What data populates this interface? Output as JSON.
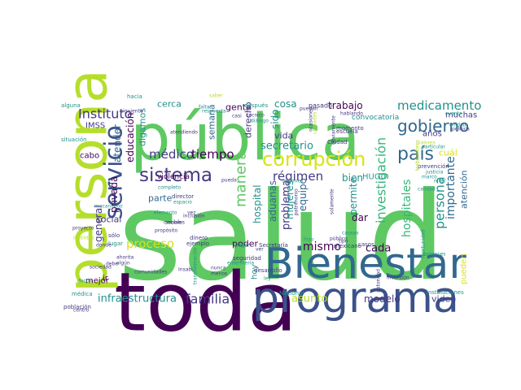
{
  "palette": {
    "green": "#5ec962",
    "lime": "#b5de2b",
    "yellow": "#d8e219",
    "teal": "#21918c",
    "cyan": "#2a9d8f",
    "blue": "#3b528b",
    "navy": "#31688e",
    "indigo": "#443983",
    "purple": "#440154",
    "mint": "#35b779"
  },
  "words": [
    {
      "text": "salud",
      "color": "green"
    },
    {
      "text": "toda",
      "color": "purple"
    },
    {
      "text": "pública",
      "color": "green"
    },
    {
      "text": "Bienestar",
      "color": "navy"
    },
    {
      "text": "persona",
      "color": "lime"
    },
    {
      "text": "programa",
      "color": "blue"
    },
    {
      "text": "servicio",
      "color": "blue"
    },
    {
      "text": "corrupción",
      "color": "yellow"
    },
    {
      "text": "sistema",
      "color": "indigo"
    },
    {
      "text": "país",
      "color": "navy"
    },
    {
      "text": "gobierno",
      "color": "navy"
    },
    {
      "text": "medicamento",
      "color": "teal"
    },
    {
      "text": "Instituto",
      "color": "indigo"
    },
    {
      "text": "médico",
      "color": "indigo"
    },
    {
      "text": "tiempo",
      "color": "purple"
    },
    {
      "text": "investigación",
      "color": "mint"
    },
    {
      "text": "hospitales",
      "color": "mint"
    },
    {
      "text": "persona",
      "color": "teal"
    },
    {
      "text": "importante",
      "color": "navy"
    },
    {
      "text": "atención",
      "color": "navy"
    },
    {
      "text": "manera",
      "color": "green"
    },
    {
      "text": "régimen",
      "color": "indigo"
    },
    {
      "text": "secretario",
      "color": "teal"
    },
    {
      "text": "proceso",
      "color": "yellow"
    },
    {
      "text": "familia",
      "color": "indigo"
    },
    {
      "text": "infraestructura",
      "color": "teal"
    },
    {
      "text": "asunto",
      "color": "lime"
    },
    {
      "text": "modelo",
      "color": "indigo"
    },
    {
      "text": "video",
      "color": "indigo"
    },
    {
      "text": "mismo",
      "color": "purple"
    },
    {
      "text": "cada",
      "color": "purple"
    },
    {
      "text": "problema",
      "color": "indigo"
    },
    {
      "text": "equipo",
      "color": "navy"
    },
    {
      "text": "permite",
      "color": "teal"
    },
    {
      "text": "dar",
      "color": "purple"
    },
    {
      "text": "bien",
      "color": "teal"
    },
    {
      "text": "HUGO",
      "color": "cyan"
    },
    {
      "text": "hospital",
      "color": "teal"
    },
    {
      "text": "aduanas",
      "color": "navy"
    },
    {
      "text": "mujeres",
      "color": "teal"
    },
    {
      "text": "vida",
      "color": "indigo"
    },
    {
      "text": "sido",
      "color": "teal"
    },
    {
      "text": "cosa",
      "color": "teal"
    },
    {
      "text": "trabajo",
      "color": "purple"
    },
    {
      "text": "gente",
      "color": "purple"
    },
    {
      "text": "derecho",
      "color": "indigo"
    },
    {
      "text": "semana",
      "color": "navy"
    },
    {
      "text": "parte",
      "color": "navy"
    },
    {
      "text": "social",
      "color": "indigo"
    },
    {
      "text": "general",
      "color": "indigo"
    },
    {
      "text": "privada",
      "color": "purple"
    },
    {
      "text": "atender",
      "color": "navy"
    },
    {
      "text": "educación",
      "color": "purple"
    },
    {
      "text": "digamos",
      "color": "teal"
    },
    {
      "text": "cerca",
      "color": "teal"
    },
    {
      "text": "IMSS",
      "color": "indigo"
    },
    {
      "text": "cabo",
      "color": "purple"
    },
    {
      "text": "mejor",
      "color": "purple"
    },
    {
      "text": "ir",
      "color": "purple"
    },
    {
      "text": "poder",
      "color": "purple"
    },
    {
      "text": "hoy",
      "color": "teal"
    },
    {
      "text": "muchas",
      "color": "indigo"
    },
    {
      "text": "años",
      "color": "indigo"
    },
    {
      "text": "cuál",
      "color": "yellow"
    },
    {
      "text": "pueden",
      "color": "yellow"
    },
    {
      "text": "violencia",
      "color": "purple"
    },
    {
      "text": "convocatoria",
      "color": "teal"
    },
    {
      "text": "momento",
      "color": "indigo"
    },
    {
      "text": "escuela",
      "color": "indigo"
    },
    {
      "text": "prevención",
      "color": "indigo"
    },
    {
      "text": "instalaciones",
      "color": "teal"
    },
    {
      "text": "seguridad",
      "color": "indigo"
    },
    {
      "text": "desarrollo",
      "color": "indigo"
    },
    {
      "text": "Secretaría",
      "color": "indigo"
    },
    {
      "text": "Nacional",
      "color": "teal"
    },
    {
      "text": "mexicano",
      "color": "indigo"
    },
    {
      "text": "casos",
      "color": "indigo"
    },
    {
      "text": "población",
      "color": "indigo"
    },
    {
      "text": "médica",
      "color": "teal"
    },
    {
      "text": "director",
      "color": "indigo"
    },
    {
      "text": "ejemplo",
      "color": "indigo"
    },
    {
      "text": "dinero",
      "color": "indigo"
    },
    {
      "text": "sólo",
      "color": "indigo"
    },
    {
      "text": "lugar",
      "color": "teal"
    },
    {
      "text": "pasado",
      "color": "indigo"
    },
    {
      "text": "después",
      "color": "teal"
    },
    {
      "text": "hacia",
      "color": "teal"
    },
    {
      "text": "alguna",
      "color": "teal"
    },
    {
      "text": "situación",
      "color": "teal"
    },
    {
      "text": "siguiente",
      "color": "indigo"
    },
    {
      "text": "respuesta",
      "color": "teal"
    },
    {
      "text": "falta",
      "color": "teal"
    },
    {
      "text": "técnico",
      "color": "indigo"
    },
    {
      "text": "diálogo",
      "color": "teal"
    },
    {
      "text": "hablando",
      "color": "indigo"
    },
    {
      "text": "Ciudad",
      "color": "indigo"
    },
    {
      "text": "valores",
      "color": "lime"
    },
    {
      "text": "particular",
      "color": "teal"
    },
    {
      "text": "política",
      "color": "indigo"
    },
    {
      "text": "millones",
      "color": "teal"
    },
    {
      "text": "completo",
      "color": "teal"
    },
    {
      "text": "pueda",
      "color": "indigo"
    },
    {
      "text": "elemento",
      "color": "teal"
    },
    {
      "text": "propósito",
      "color": "indigo"
    },
    {
      "text": "ahorita",
      "color": "indigo"
    },
    {
      "text": "algún",
      "color": "indigo"
    },
    {
      "text": "debe",
      "color": "indigo"
    },
    {
      "text": "Insabi",
      "color": "indigo"
    },
    {
      "text": "doctor",
      "color": "teal"
    },
    {
      "text": "centro",
      "color": "indigo"
    },
    {
      "text": "proyecto",
      "color": "indigo"
    },
    {
      "text": "distintas",
      "color": "lime"
    },
    {
      "text": "dónde",
      "color": "indigo"
    },
    {
      "text": "cambio",
      "color": "indigo"
    },
    {
      "text": "hizo",
      "color": "teal"
    },
    {
      "text": "público",
      "color": "indigo"
    },
    {
      "text": "causas",
      "color": "teal"
    },
    {
      "text": "tipo",
      "color": "indigo"
    },
    {
      "text": "inversión",
      "color": "indigo"
    },
    {
      "text": "justicia",
      "color": "teal"
    },
    {
      "text": "pagar",
      "color": "teal"
    },
    {
      "text": "ver",
      "color": "indigo"
    },
    {
      "text": "ley",
      "color": "teal"
    },
    {
      "text": "enfermería",
      "color": "teal"
    },
    {
      "text": "transformación",
      "color": "teal"
    },
    {
      "text": "nunca",
      "color": "indigo"
    },
    {
      "text": "menos",
      "color": "indigo"
    },
    {
      "text": "espacio",
      "color": "teal"
    },
    {
      "text": "sociales",
      "color": "indigo"
    },
    {
      "text": "comunidades",
      "color": "indigo"
    },
    {
      "text": "sociedad",
      "color": "indigo"
    },
    {
      "text": "vez",
      "color": "indigo"
    },
    {
      "text": "patrimonio",
      "color": "indigo"
    },
    {
      "text": "solamente",
      "color": "indigo"
    },
    {
      "text": "cuenta",
      "color": "teal"
    },
    {
      "text": "atendiendo",
      "color": "indigo"
    },
    {
      "text": "casi",
      "color": "indigo"
    },
    {
      "text": "saber",
      "color": "lime"
    },
    {
      "text": "unidades",
      "color": "lime"
    },
    {
      "text": "ocasiones",
      "color": "indigo"
    },
    {
      "text": "obviamente",
      "color": "indigo"
    },
    {
      "text": "autoridad",
      "color": "indigo"
    },
    {
      "text": "puedan",
      "color": "indigo"
    },
    {
      "text": "unidad",
      "color": "teal"
    },
    {
      "text": "mecanismo",
      "color": "teal"
    },
    {
      "text": "inclusión",
      "color": "indigo"
    },
    {
      "text": "entonces",
      "color": "teal"
    },
    {
      "text": "trabajadores",
      "color": "lime"
    },
    {
      "text": "oportunidad",
      "color": "teal"
    },
    {
      "text": "calidad",
      "color": "teal"
    },
    {
      "text": "marco",
      "color": "teal"
    },
    {
      "text": "nivel",
      "color": "teal"
    }
  ]
}
